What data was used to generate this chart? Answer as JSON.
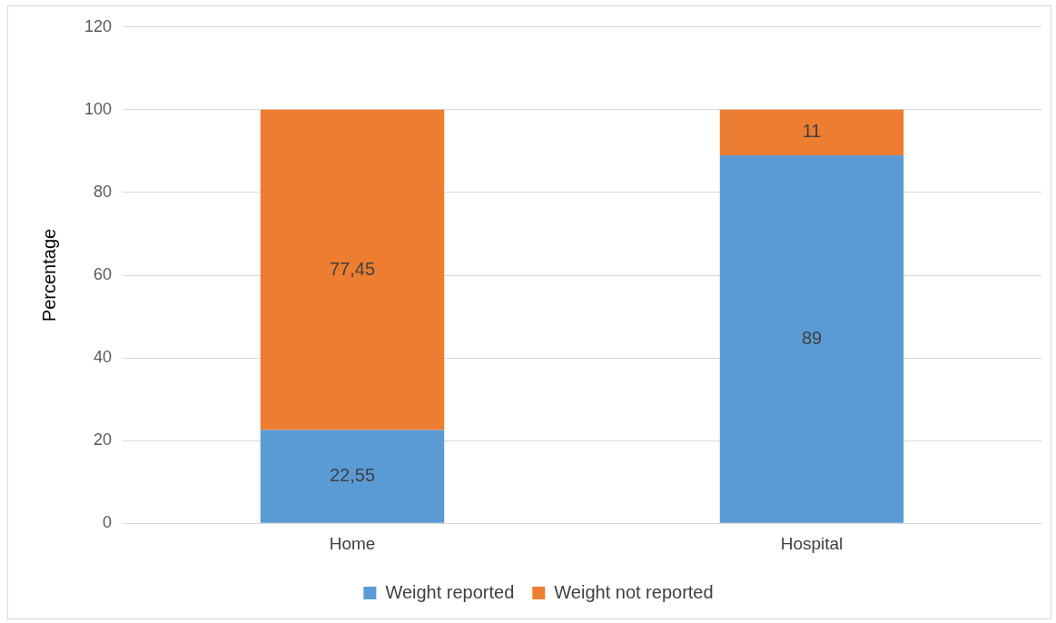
{
  "chart_data": {
    "type": "bar",
    "ylabel": "Percentage",
    "categories": [
      "Home",
      "Hospital"
    ],
    "stacked": true,
    "ylim": [
      0,
      120
    ],
    "yticks": [
      0,
      20,
      40,
      60,
      80,
      100,
      120
    ],
    "grid": "y",
    "legend": "bottom",
    "series": [
      {
        "name": "Weight reported",
        "color": "#5b9bd5",
        "values": [
          22.55,
          89
        ],
        "value_labels": [
          "22,55",
          "89"
        ]
      },
      {
        "name": "Weight not reported",
        "color": "#ed7d31",
        "values": [
          77.45,
          11
        ],
        "value_labels": [
          "77,45",
          "11"
        ]
      }
    ]
  }
}
